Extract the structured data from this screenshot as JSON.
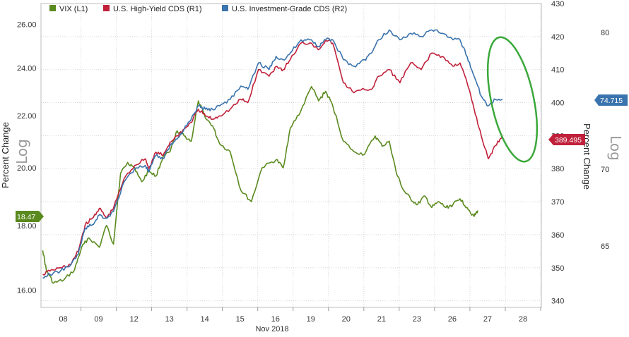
{
  "legend": [
    {
      "label": "VIX (L1)",
      "color": "#5a8a1e"
    },
    {
      "label": "U.S. High-Yield CDS (R1)",
      "color": "#c0203a"
    },
    {
      "label": "U.S. Investment-Grade CDS (R2)",
      "color": "#3a73ad"
    }
  ],
  "axis_titles": {
    "left": "Percent Change",
    "right": "Percent Change",
    "left_log": "Log",
    "right_log": "Log"
  },
  "tags": {
    "vix": "18.47",
    "hy": "389.495",
    "ig": "74.715"
  },
  "xlabel": "Nov 2018",
  "chart_data": {
    "type": "line",
    "x_categories": [
      "08",
      "09",
      "12",
      "13",
      "14",
      "15",
      "16",
      "19",
      "20",
      "21",
      "23",
      "26",
      "27",
      "28"
    ],
    "y_axes": {
      "L1": {
        "ticks": [
          "16.00",
          "18.00",
          "20.00",
          "22.00",
          "24.00",
          "26.00"
        ],
        "scale": "log",
        "range": [
          15.5,
          27.0
        ]
      },
      "R1": {
        "ticks": [
          "340",
          "350",
          "360",
          "370",
          "380",
          "390",
          "400",
          "410",
          "420",
          "430"
        ],
        "range": [
          338,
          430
        ]
      },
      "R2": {
        "ticks": [
          "65",
          "70",
          "75",
          "80"
        ]
      }
    },
    "series": [
      {
        "name": "VIX (L1)",
        "axis": "L1",
        "color": "#5a8a1e",
        "points": [
          [
            0,
            17.2
          ],
          [
            0.1,
            16.6
          ],
          [
            0.3,
            16.2
          ],
          [
            0.6,
            16.3
          ],
          [
            0.9,
            16.6
          ],
          [
            1.1,
            17.3
          ],
          [
            1.3,
            17.6
          ],
          [
            1.6,
            17.3
          ],
          [
            1.8,
            18.0
          ],
          [
            2.0,
            17.4
          ],
          [
            2.2,
            19.8
          ],
          [
            2.4,
            20.2
          ],
          [
            2.6,
            20.0
          ],
          [
            2.8,
            19.5
          ],
          [
            3.0,
            19.9
          ],
          [
            3.2,
            19.7
          ],
          [
            3.4,
            20.4
          ],
          [
            3.6,
            20.6
          ],
          [
            3.8,
            21.4
          ],
          [
            4.0,
            21.2
          ],
          [
            4.2,
            21.0
          ],
          [
            4.4,
            22.6
          ],
          [
            4.6,
            21.9
          ],
          [
            4.8,
            21.6
          ],
          [
            5.0,
            20.9
          ],
          [
            5.3,
            20.6
          ],
          [
            5.6,
            19.2
          ],
          [
            5.9,
            18.8
          ],
          [
            6.2,
            20.0
          ],
          [
            6.6,
            20.3
          ],
          [
            6.8,
            20.0
          ],
          [
            7.0,
            21.5
          ],
          [
            7.3,
            22.2
          ],
          [
            7.6,
            23.2
          ],
          [
            7.8,
            22.6
          ],
          [
            8.0,
            23.0
          ],
          [
            8.2,
            22.4
          ],
          [
            8.5,
            21.0
          ],
          [
            8.8,
            20.6
          ],
          [
            9.1,
            20.5
          ],
          [
            9.4,
            21.2
          ],
          [
            9.6,
            20.8
          ],
          [
            9.8,
            21.0
          ],
          [
            10.0,
            19.8
          ],
          [
            10.2,
            19.2
          ],
          [
            10.4,
            18.9
          ],
          [
            10.6,
            18.7
          ],
          [
            10.8,
            19.0
          ],
          [
            11.0,
            18.6
          ],
          [
            11.2,
            18.8
          ],
          [
            11.4,
            18.6
          ],
          [
            11.6,
            18.7
          ],
          [
            11.8,
            18.9
          ],
          [
            12.0,
            18.6
          ],
          [
            12.2,
            18.3
          ],
          [
            12.3,
            18.5
          ]
        ]
      },
      {
        "name": "U.S. High-Yield CDS (R1)",
        "axis": "R1",
        "color": "#c0203a",
        "points": [
          [
            0,
            348
          ],
          [
            0.2,
            349
          ],
          [
            0.5,
            350
          ],
          [
            0.8,
            351
          ],
          [
            1.0,
            355
          ],
          [
            1.2,
            363
          ],
          [
            1.4,
            365
          ],
          [
            1.6,
            368
          ],
          [
            1.8,
            365
          ],
          [
            2.0,
            368
          ],
          [
            2.3,
            377
          ],
          [
            2.6,
            381
          ],
          [
            2.9,
            383
          ],
          [
            3.0,
            380
          ],
          [
            3.2,
            385
          ],
          [
            3.4,
            384
          ],
          [
            3.6,
            388
          ],
          [
            3.8,
            390
          ],
          [
            4.0,
            392
          ],
          [
            4.2,
            394
          ],
          [
            4.4,
            398
          ],
          [
            4.6,
            396
          ],
          [
            4.8,
            395
          ],
          [
            5.0,
            396
          ],
          [
            5.3,
            398
          ],
          [
            5.6,
            401
          ],
          [
            5.8,
            400
          ],
          [
            6.1,
            410
          ],
          [
            6.4,
            408
          ],
          [
            6.6,
            411
          ],
          [
            6.8,
            410
          ],
          [
            7.0,
            413
          ],
          [
            7.3,
            418
          ],
          [
            7.6,
            418
          ],
          [
            7.8,
            416
          ],
          [
            8.0,
            419
          ],
          [
            8.2,
            418
          ],
          [
            8.5,
            406
          ],
          [
            8.8,
            403
          ],
          [
            9.1,
            404
          ],
          [
            9.3,
            404
          ],
          [
            9.5,
            408
          ],
          [
            9.8,
            410
          ],
          [
            10.1,
            406
          ],
          [
            10.4,
            412
          ],
          [
            10.7,
            410
          ],
          [
            11.0,
            415
          ],
          [
            11.3,
            414
          ],
          [
            11.6,
            411
          ],
          [
            11.8,
            412
          ],
          [
            12.0,
            406
          ],
          [
            12.2,
            398
          ],
          [
            12.4,
            390
          ],
          [
            12.6,
            383
          ],
          [
            12.8,
            387
          ],
          [
            13.0,
            390
          ]
        ]
      },
      {
        "name": "U.S. Investment-Grade CDS (R2)",
        "axis": "R1",
        "color": "#3a73ad",
        "points": [
          [
            0,
            347
          ],
          [
            0.2,
            348
          ],
          [
            0.5,
            349
          ],
          [
            0.8,
            351
          ],
          [
            1.0,
            354
          ],
          [
            1.2,
            362
          ],
          [
            1.4,
            363
          ],
          [
            1.6,
            366
          ],
          [
            1.8,
            365
          ],
          [
            2.0,
            367
          ],
          [
            2.3,
            376
          ],
          [
            2.6,
            380
          ],
          [
            2.9,
            381
          ],
          [
            3.0,
            379
          ],
          [
            3.2,
            384
          ],
          [
            3.4,
            383
          ],
          [
            3.6,
            387
          ],
          [
            3.8,
            389
          ],
          [
            4.0,
            392
          ],
          [
            4.2,
            395
          ],
          [
            4.4,
            399
          ],
          [
            4.6,
            398
          ],
          [
            4.8,
            398
          ],
          [
            5.0,
            399
          ],
          [
            5.3,
            401
          ],
          [
            5.6,
            405
          ],
          [
            5.8,
            404
          ],
          [
            6.1,
            412
          ],
          [
            6.4,
            410
          ],
          [
            6.6,
            414
          ],
          [
            6.8,
            413
          ],
          [
            7.0,
            415
          ],
          [
            7.3,
            419
          ],
          [
            7.6,
            419
          ],
          [
            7.8,
            417
          ],
          [
            8.0,
            419
          ],
          [
            8.2,
            419
          ],
          [
            8.5,
            413
          ],
          [
            8.8,
            411
          ],
          [
            9.1,
            413
          ],
          [
            9.3,
            415
          ],
          [
            9.5,
            419
          ],
          [
            9.8,
            422
          ],
          [
            10.1,
            419
          ],
          [
            10.4,
            421
          ],
          [
            10.7,
            420
          ],
          [
            11.0,
            422
          ],
          [
            11.3,
            421
          ],
          [
            11.6,
            419
          ],
          [
            11.8,
            419
          ],
          [
            12.0,
            414
          ],
          [
            12.2,
            408
          ],
          [
            12.4,
            402
          ],
          [
            12.6,
            399
          ],
          [
            12.8,
            401
          ],
          [
            13.0,
            401
          ]
        ]
      }
    ],
    "annotation": {
      "shape": "ellipse",
      "color": "#3aa83a"
    }
  }
}
